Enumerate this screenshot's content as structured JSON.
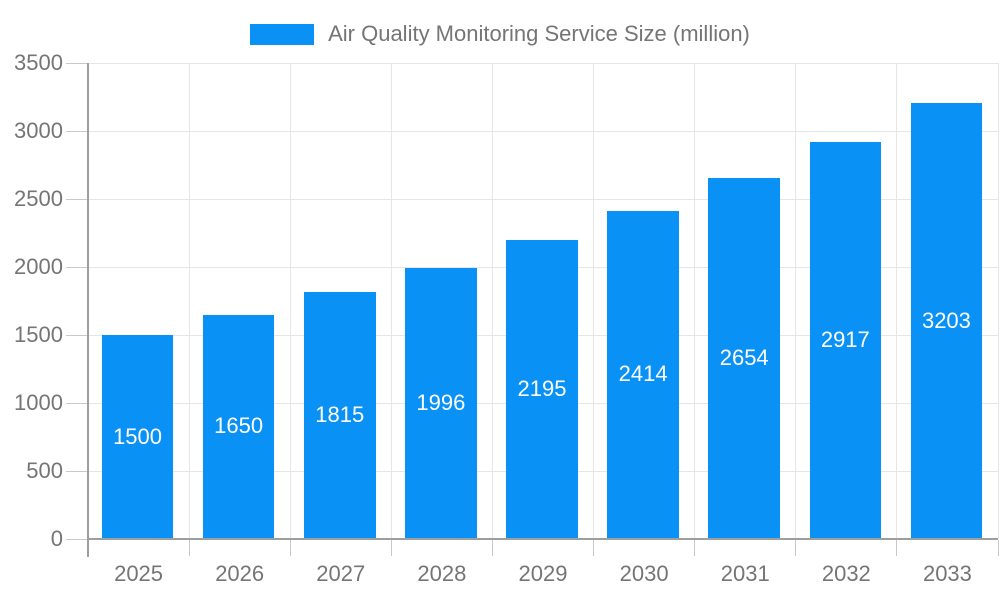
{
  "chart_data": {
    "type": "bar",
    "title": "Air Quality Monitoring Service Size (million)",
    "legend_position": "top",
    "categories": [
      "2025",
      "2026",
      "2027",
      "2028",
      "2029",
      "2030",
      "2031",
      "2032",
      "2033"
    ],
    "values": [
      1500,
      1650,
      1815,
      1996,
      2195,
      2414,
      2654,
      2917,
      3203
    ],
    "bar_labels": [
      1500,
      1650,
      1815,
      1996,
      2195,
      2414,
      2654,
      2917,
      3203
    ],
    "xlabel": "",
    "ylabel": "",
    "ylim": [
      0,
      3500
    ],
    "yticks": [
      0,
      500,
      1000,
      1500,
      2000,
      2500,
      3000,
      3500
    ],
    "grid": true,
    "colors": {
      "bar": "#0a91f5",
      "bar_label": "#ffffff",
      "axis_text": "#757575",
      "gridline": "#e6e6e6",
      "tick": "#c9c9c9",
      "axis_line": "#9e9e9e",
      "background": "#ffffff"
    }
  }
}
